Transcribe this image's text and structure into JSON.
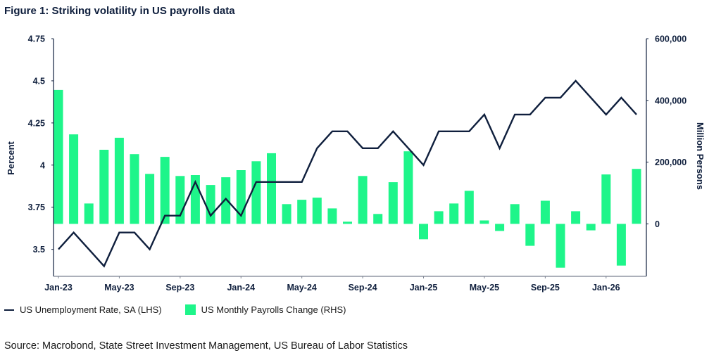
{
  "title": "Figure 1: Striking volatility in US payrolls data",
  "legend": {
    "line_label": "US Unemployment Rate, SA (LHS)",
    "bar_label": "US Monthly Payrolls Change (RHS)"
  },
  "source": "Source: Macrobond, State Street Investment Management, US Bureau of Labor Statistics",
  "colors": {
    "line": "#0f1f3d",
    "bars": "#1ef58a",
    "axis": "#0f1f3d"
  },
  "chart_data": {
    "type": "bar",
    "title": "Figure 1: Striking volatility in US payrolls data",
    "xlabel": "",
    "ylabel": "Percent",
    "y2label": "Million Persons",
    "ylim": [
      3.34,
      4.75
    ],
    "y2lim": [
      -170000,
      600000
    ],
    "yticks": [
      "4.75",
      "4.5",
      "4.25",
      "4",
      "3.75",
      "3.5"
    ],
    "ytick_values": [
      4.75,
      4.5,
      4.25,
      4.0,
      3.75,
      3.5
    ],
    "y2ticks": [
      "600,000",
      "400,000",
      "200,000",
      "0"
    ],
    "y2tick_values": [
      600000,
      400000,
      200000,
      0
    ],
    "xtick_labels": [
      "Jan-23",
      "May-23",
      "Sep-23",
      "Jan-24",
      "May-24",
      "Sep-24",
      "Jan-25",
      "May-25",
      "Sep-25",
      "Jan-26"
    ],
    "xtick_indices": [
      0,
      4,
      8,
      12,
      16,
      20,
      24,
      28,
      32,
      36
    ],
    "grid": false,
    "legend_position": "bottom-left",
    "categories": [
      "Jan-23",
      "Feb-23",
      "Mar-23",
      "Apr-23",
      "May-23",
      "Jun-23",
      "Jul-23",
      "Aug-23",
      "Sep-23",
      "Oct-23",
      "Nov-23",
      "Dec-23",
      "Jan-24",
      "Feb-24",
      "Mar-24",
      "Apr-24",
      "May-24",
      "Jun-24",
      "Jul-24",
      "Aug-24",
      "Sep-24",
      "Oct-24",
      "Nov-24",
      "Dec-24",
      "Jan-25",
      "Feb-25",
      "Mar-25",
      "Apr-25",
      "May-25",
      "Jun-25",
      "Jul-25",
      "Aug-25",
      "Sep-25",
      "Oct-25",
      "Nov-25",
      "Dec-25",
      "Jan-26",
      "Feb-26",
      "Mar-26"
    ],
    "series": [
      {
        "name": "US Monthly Payrolls Change (RHS)",
        "type": "bar",
        "axis": "right",
        "values": [
          434000,
          290000,
          66000,
          240000,
          279000,
          226000,
          162000,
          217000,
          155000,
          158000,
          126000,
          151000,
          174000,
          203000,
          229000,
          64000,
          78000,
          85000,
          50000,
          7000,
          155000,
          32000,
          135000,
          235000,
          -50000,
          41000,
          66000,
          107000,
          11000,
          -23000,
          64000,
          -71000,
          75000,
          -142000,
          41000,
          -21000,
          160000,
          -135000,
          178000
        ]
      },
      {
        "name": "US Unemployment Rate, SA (LHS)",
        "type": "line",
        "axis": "left",
        "values": [
          3.5,
          3.6,
          3.5,
          3.4,
          3.6,
          3.6,
          3.5,
          3.7,
          3.7,
          3.9,
          3.7,
          3.8,
          3.7,
          3.9,
          3.9,
          3.9,
          3.9,
          4.1,
          4.2,
          4.2,
          4.1,
          4.1,
          4.2,
          4.1,
          4.0,
          4.2,
          4.2,
          4.2,
          4.3,
          4.1,
          4.3,
          4.3,
          4.4,
          4.4,
          4.5,
          4.4,
          4.3,
          4.4,
          4.3
        ]
      }
    ]
  }
}
